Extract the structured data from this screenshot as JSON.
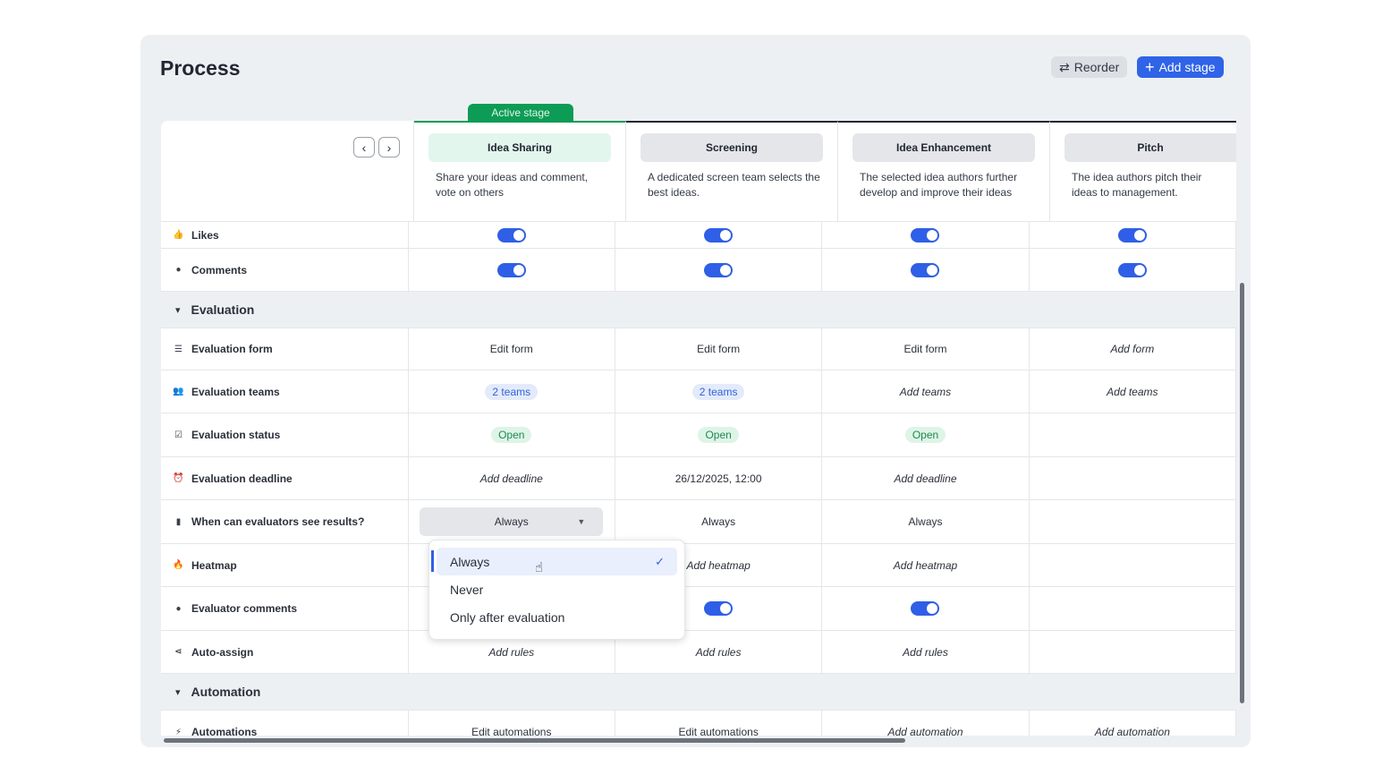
{
  "header": {
    "title": "Process",
    "reorder_label": "Reorder",
    "add_stage_label": "Add stage",
    "active_stage_label": "Active stage"
  },
  "stages": [
    {
      "name": "Idea Sharing",
      "description": "Share your ideas and comment, vote on others"
    },
    {
      "name": "Screening",
      "description": "A dedicated screen team selects the best ideas."
    },
    {
      "name": "Idea Enhancement",
      "description": "The selected idea authors further develop and improve their ideas"
    },
    {
      "name": "Pitch",
      "description": "The idea authors pitch their ideas to management."
    }
  ],
  "rows_top": [
    {
      "label": "Likes",
      "icon": "thumbs-up-icon",
      "toggles": [
        true,
        true,
        true,
        true
      ]
    },
    {
      "label": "Comments",
      "icon": "comment-icon",
      "toggles": [
        true,
        true,
        true,
        true
      ]
    }
  ],
  "sections": {
    "evaluation": "Evaluation",
    "automation": "Automation"
  },
  "evaluation": {
    "form": {
      "label": "Evaluation form",
      "cells": [
        "Edit form",
        "Edit form",
        "Edit form",
        "Add form"
      ]
    },
    "teams": {
      "label": "Evaluation teams",
      "cells": [
        "2 teams",
        "2 teams",
        "Add teams",
        "Add teams"
      ]
    },
    "status": {
      "label": "Evaluation status",
      "cells": [
        "Open",
        "Open",
        "Open",
        ""
      ]
    },
    "deadline": {
      "label": "Evaluation deadline",
      "cells": [
        "Add deadline",
        "26/12/2025, 12:00",
        "Add deadline",
        ""
      ]
    },
    "results": {
      "label": "When can evaluators see results?",
      "cells": [
        "Always",
        "Always",
        "Always",
        ""
      ]
    },
    "heatmap": {
      "label": "Heatmap",
      "cells": [
        "",
        "Add heatmap",
        "Add heatmap",
        ""
      ]
    },
    "comments": {
      "label": "Evaluator comments",
      "toggles": [
        true,
        true,
        true,
        false
      ]
    },
    "autoassign": {
      "label": "Auto-assign",
      "cells": [
        "Add rules",
        "Add rules",
        "Add rules",
        ""
      ]
    }
  },
  "automation": {
    "label": "Automations",
    "cells": [
      "Edit automations",
      "Edit automations",
      "Add automation",
      "Add automation"
    ]
  },
  "dropdown": {
    "options": [
      "Always",
      "Never",
      "Only after evaluation"
    ],
    "selected": "Always"
  },
  "colors": {
    "accent": "#2f63e8",
    "active": "#0c9c55"
  }
}
